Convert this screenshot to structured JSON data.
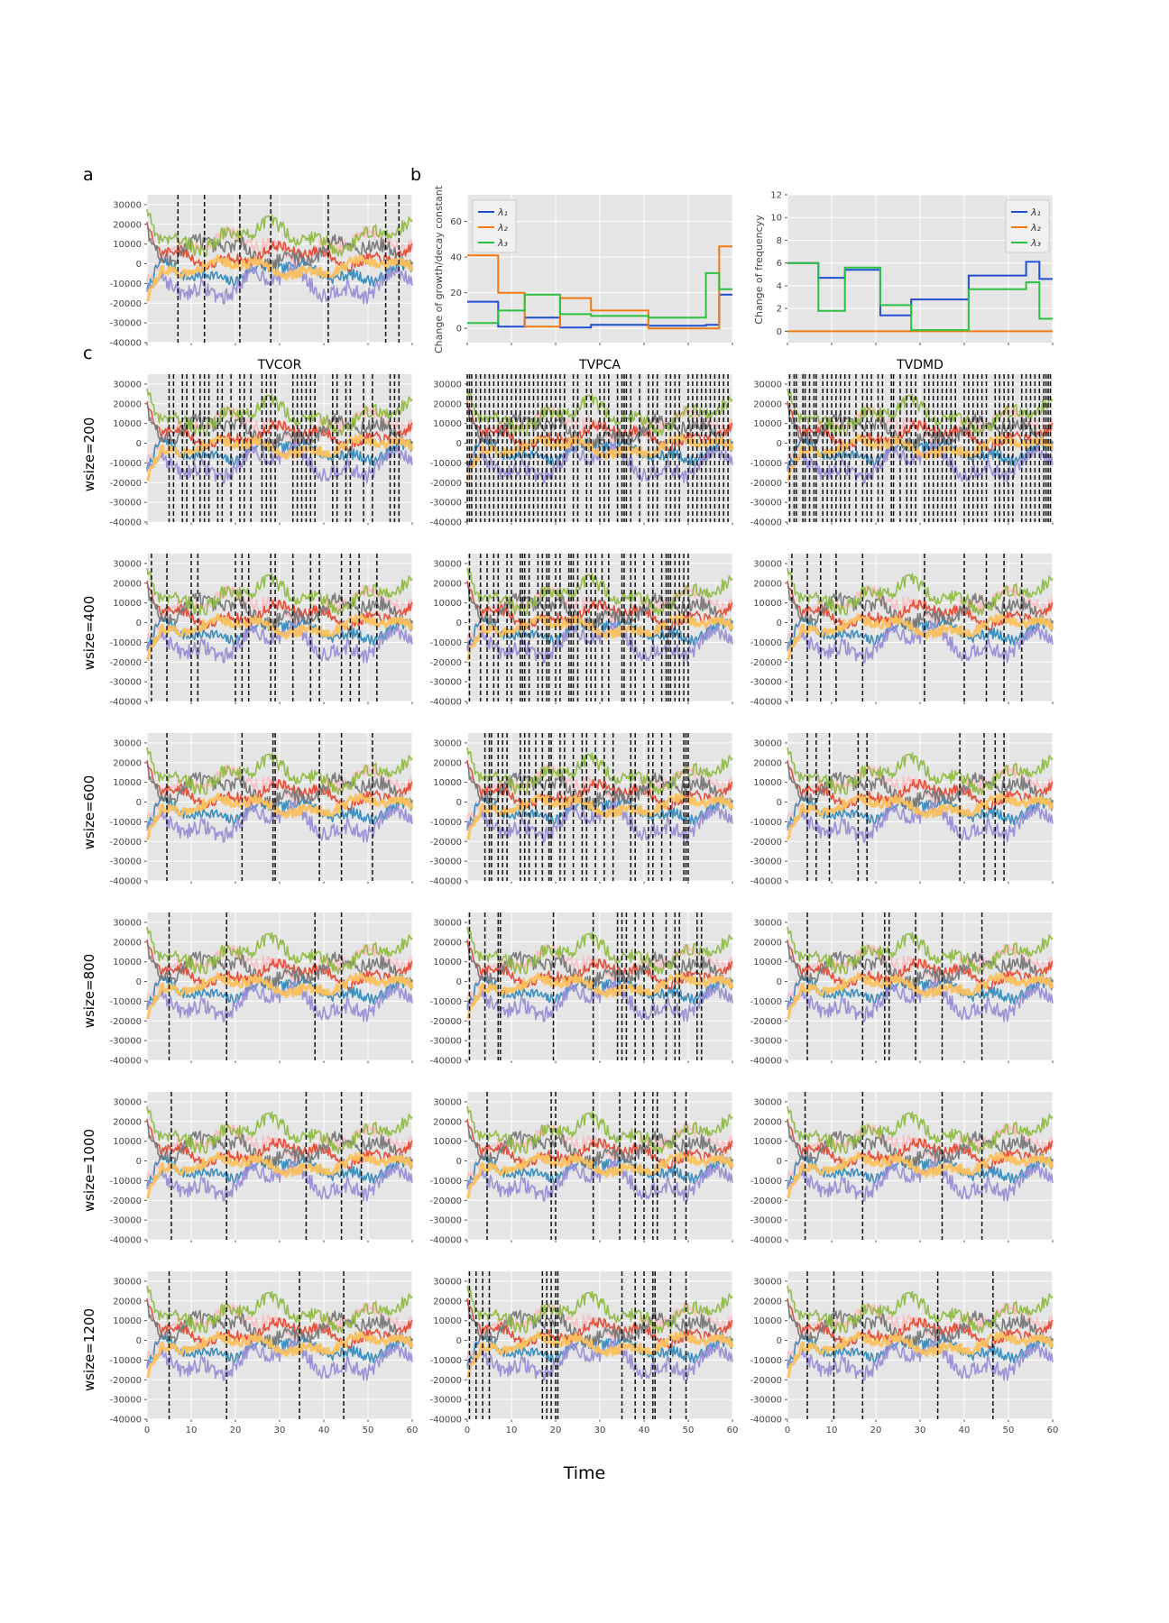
{
  "figure": {
    "panel_labels": [
      "a",
      "b",
      "c"
    ],
    "column_titles": [
      "TVCOR",
      "TVPCA",
      "TVDMD"
    ],
    "row_labels": [
      "wsize=200",
      "wsize=400",
      "wsize=600",
      "wsize=800",
      "wsize=1000",
      "wsize=1200"
    ],
    "xlabel": "Time",
    "colors": {
      "background": "#e5e5e5",
      "grid": "#ffffff",
      "changepoint": "#111111",
      "signals": [
        "#348abd",
        "#e24a33",
        "#988ed5",
        "#777777",
        "#fbc15e",
        "#8eba42",
        "#ffb5b8"
      ],
      "lambda": [
        "#1f4fd1",
        "#f07a14",
        "#2ec040"
      ]
    }
  },
  "chart_data": [
    {
      "type": "line",
      "panel": "a",
      "xlim": [
        0,
        60
      ],
      "ylim": [
        -40000,
        35000
      ],
      "yticks": [
        -40000,
        -30000,
        -20000,
        -10000,
        0,
        10000,
        20000,
        30000
      ],
      "changepoints": [
        7,
        13,
        21,
        28,
        41,
        54,
        57
      ]
    },
    {
      "type": "line",
      "panel": "b-left",
      "ylabel": "Change of growth/decay constant",
      "xlim": [
        0,
        60
      ],
      "ylim": [
        -8,
        75
      ],
      "yticks": [
        0,
        20,
        40,
        60
      ],
      "series": [
        {
          "name": "λ₁",
          "x": [
            0,
            7,
            7,
            13,
            13,
            21,
            21,
            28,
            28,
            41,
            41,
            54,
            54,
            57,
            57,
            60
          ],
          "y": [
            15,
            15,
            1,
            1,
            6,
            6,
            0.5,
            0.5,
            2,
            2,
            1.5,
            1.5,
            2,
            2,
            19,
            19
          ]
        },
        {
          "name": "λ₂",
          "x": [
            0,
            7,
            7,
            13,
            13,
            21,
            21,
            28,
            28,
            41,
            41,
            54,
            54,
            57,
            57,
            60
          ],
          "y": [
            41,
            41,
            20,
            20,
            1,
            1,
            17,
            17,
            10,
            10,
            0,
            0,
            0,
            0,
            46,
            46
          ]
        },
        {
          "name": "λ₃",
          "x": [
            0,
            7,
            7,
            13,
            13,
            21,
            21,
            28,
            28,
            41,
            41,
            54,
            54,
            57,
            57,
            60
          ],
          "y": [
            3,
            3,
            10,
            10,
            19,
            19,
            8,
            8,
            7,
            7,
            6,
            6,
            31,
            31,
            22,
            22
          ]
        }
      ]
    },
    {
      "type": "line",
      "panel": "b-right",
      "ylabel": "Change of frequencyy",
      "xlim": [
        0,
        60
      ],
      "ylim": [
        -1,
        12
      ],
      "yticks": [
        0,
        2,
        4,
        6,
        8,
        10,
        12
      ],
      "series": [
        {
          "name": "λ₁",
          "x": [
            0,
            7,
            7,
            13,
            13,
            21,
            21,
            28,
            28,
            41,
            41,
            54,
            54,
            57,
            57,
            60
          ],
          "y": [
            6,
            6,
            4.7,
            4.7,
            5.4,
            5.4,
            1.4,
            1.4,
            2.8,
            2.8,
            4.9,
            4.9,
            6.1,
            6.1,
            4.6,
            4.6
          ]
        },
        {
          "name": "λ₂",
          "x": [
            0,
            60
          ],
          "y": [
            0,
            0
          ]
        },
        {
          "name": "λ₃",
          "x": [
            0,
            7,
            7,
            13,
            13,
            21,
            21,
            28,
            28,
            41,
            41,
            54,
            54,
            57,
            57,
            60
          ],
          "y": [
            6,
            6,
            1.8,
            1.8,
            5.6,
            5.6,
            2.3,
            2.3,
            0.1,
            0.1,
            3.7,
            3.7,
            4.3,
            4.3,
            1.1,
            1.1
          ]
        }
      ]
    },
    {
      "type": "line",
      "panel": "c",
      "xlim": [
        0,
        60
      ],
      "xticks": [
        0,
        10,
        20,
        30,
        40,
        50,
        60
      ],
      "ylim": [
        -40000,
        35000
      ],
      "yticks": [
        -40000,
        -30000,
        -20000,
        -10000,
        0,
        10000,
        20000,
        30000
      ],
      "changepoints": {
        "TVCOR": [
          [
            5,
            6,
            8,
            9,
            10.5,
            12,
            13,
            14,
            16,
            17,
            19,
            21,
            22,
            23.5,
            26,
            27,
            28,
            29,
            33,
            34,
            35,
            36,
            37,
            38,
            42,
            43,
            45,
            46,
            49,
            51,
            55,
            56,
            57
          ],
          [
            1,
            4.5,
            10,
            11.5,
            20,
            21.5,
            23,
            28,
            29,
            33,
            37,
            39,
            44,
            46,
            48,
            52
          ],
          [
            4.5,
            21.5,
            28.5,
            29,
            39,
            44,
            51
          ],
          [
            5,
            18,
            38,
            44
          ],
          [
            5.5,
            18,
            36,
            44,
            48.5
          ],
          [
            5,
            18,
            34.5,
            44.5
          ]
        ],
        "TVPCA": [
          [
            0,
            0.5,
            1,
            2,
            3,
            4,
            5,
            6,
            7,
            8,
            9,
            10,
            11,
            12,
            13,
            14,
            15,
            16,
            17,
            18,
            19,
            20,
            21,
            22,
            24,
            25,
            27,
            28,
            30,
            31,
            32,
            34,
            35,
            35.5,
            36,
            37,
            39,
            41,
            42,
            43,
            45,
            46,
            47,
            48,
            50,
            51,
            52,
            53,
            54,
            55,
            56,
            57,
            58,
            59
          ],
          [
            0.5,
            3,
            4.5,
            6,
            7,
            9,
            10,
            12,
            12.5,
            13,
            14,
            16,
            17,
            18,
            18.5,
            20,
            21,
            23,
            23.5,
            24,
            25,
            27,
            28,
            29,
            30.5,
            32,
            35,
            35.5,
            37,
            38,
            40,
            42,
            44,
            45,
            45.5,
            46,
            47,
            48,
            49,
            50
          ],
          [
            4,
            5,
            5.5,
            7,
            8,
            9,
            12,
            13,
            14,
            15.5,
            17,
            18.5,
            19,
            21,
            22,
            24,
            26,
            27,
            29,
            31,
            33,
            37,
            38,
            41,
            42,
            44,
            46,
            49,
            49.5,
            50
          ],
          [
            0.5,
            4,
            7,
            7.5,
            19.5,
            28.5,
            34,
            35,
            36,
            38,
            40,
            42,
            45,
            47,
            48,
            52,
            53
          ],
          [
            4.5,
            19,
            20,
            28.5,
            34.5,
            38,
            40,
            42,
            43,
            47,
            49.5
          ],
          [
            0.5,
            2,
            3.5,
            5,
            17,
            18,
            19,
            20,
            20.5,
            35,
            38,
            40,
            42,
            42.5,
            46,
            49.5
          ]
        ],
        "TVDMD": [
          [
            0.5,
            1.5,
            2,
            3.5,
            4,
            5,
            6,
            6.5,
            8,
            9,
            10,
            11,
            12,
            13,
            14,
            15.5,
            17,
            18,
            19,
            20.5,
            21.5,
            23.5,
            24,
            25.5,
            27,
            28,
            29,
            31,
            32,
            33,
            34,
            35,
            36,
            37,
            38,
            40,
            41,
            42,
            43,
            44,
            45,
            47,
            48,
            49,
            50,
            51,
            53,
            54,
            55,
            56,
            57,
            58,
            58.5,
            59,
            59.5
          ],
          [
            1,
            4.5,
            7.5,
            11,
            17,
            31,
            40,
            45,
            49,
            53
          ],
          [
            4.5,
            6.5,
            9.5,
            16,
            18,
            39,
            44.5,
            47,
            49
          ],
          [
            4.5,
            17,
            22,
            23,
            29,
            35,
            44
          ],
          [
            4,
            17,
            35,
            44
          ],
          [
            4.5,
            10.5,
            17,
            34,
            46.5
          ]
        ]
      }
    }
  ]
}
